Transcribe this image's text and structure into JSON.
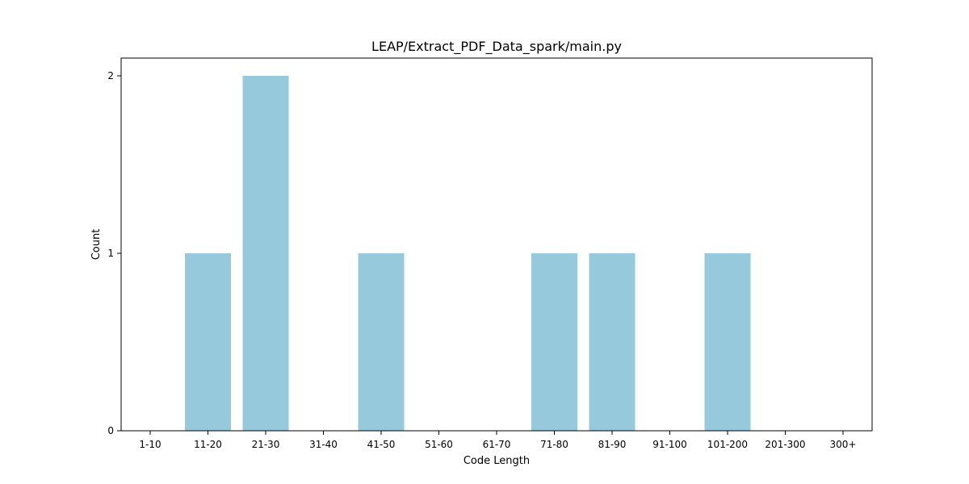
{
  "chart_data": {
    "type": "bar",
    "title": "LEAP/Extract_PDF_Data_spark/main.py",
    "xlabel": "Code Length",
    "ylabel": "Count",
    "categories": [
      "1-10",
      "11-20",
      "21-30",
      "31-40",
      "41-50",
      "51-60",
      "61-70",
      "71-80",
      "81-90",
      "91-100",
      "101-200",
      "201-300",
      "300+"
    ],
    "values": [
      0,
      1,
      2,
      0,
      1,
      0,
      0,
      1,
      1,
      0,
      1,
      0,
      0
    ],
    "yticks": [
      0,
      1,
      2
    ],
    "ylim": [
      0,
      2.1
    ],
    "bar_color": "#96c9dc",
    "grid": false,
    "legend": "none"
  }
}
